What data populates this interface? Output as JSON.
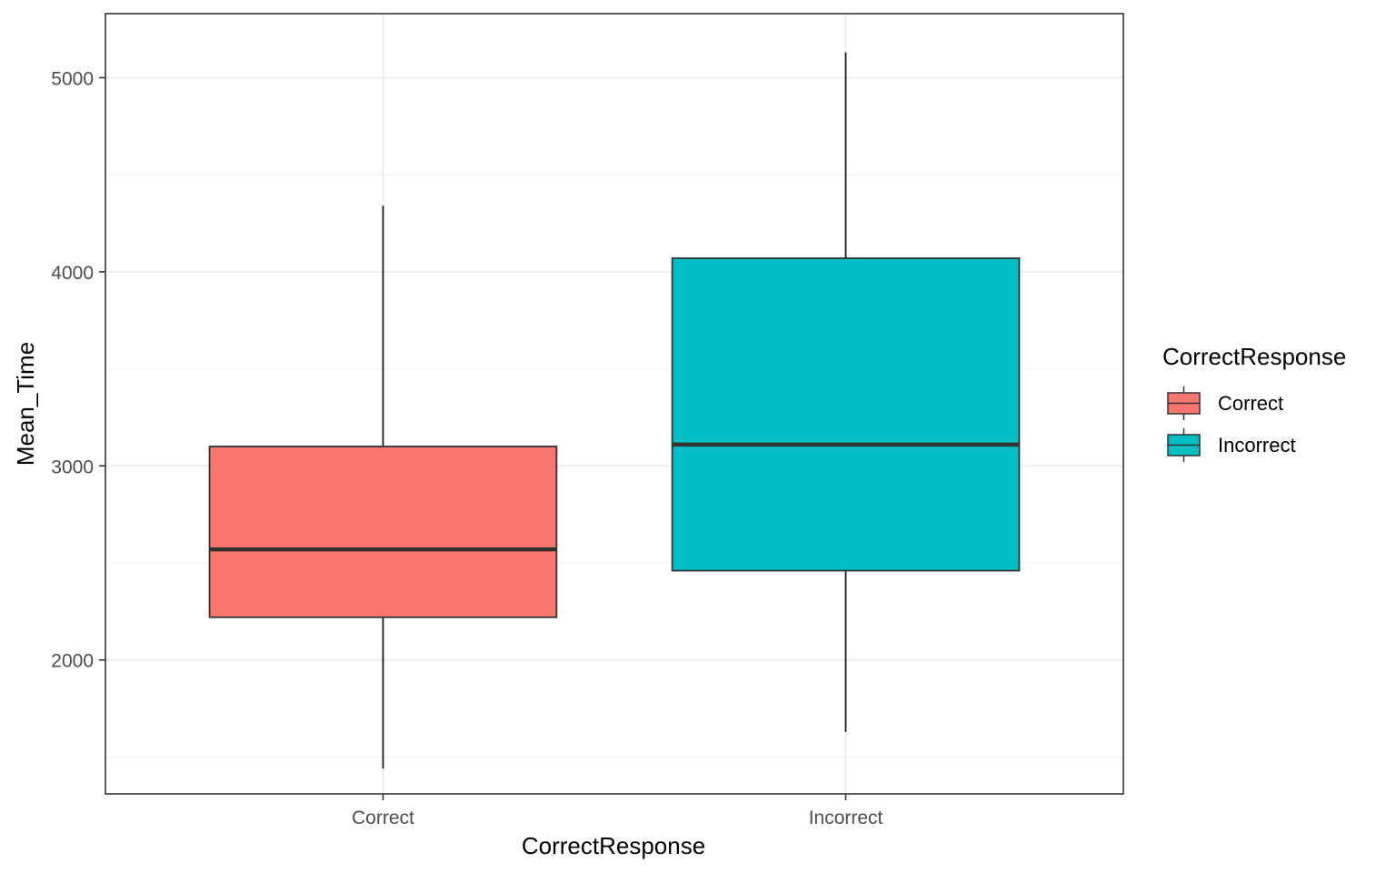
{
  "chart_data": {
    "type": "boxplot",
    "xlabel": "CorrectResponse",
    "ylabel": "Mean_Time",
    "categories": [
      "Correct",
      "Incorrect"
    ],
    "ylim": [
      1310,
      5330
    ],
    "yticks": [
      2000,
      3000,
      4000,
      5000
    ],
    "grid": true,
    "boxes": [
      {
        "category": "Correct",
        "min": 1440,
        "q1": 2220,
        "median": 2570,
        "q3": 3100,
        "max": 4340,
        "color": "#F8766D"
      },
      {
        "category": "Incorrect",
        "min": 1630,
        "q1": 2460,
        "median": 3110,
        "q3": 4070,
        "max": 5130,
        "color": "#00BFC4"
      }
    ],
    "legend": {
      "title": "CorrectResponse",
      "position": "right",
      "items": [
        {
          "label": "Correct",
          "color": "#F8766D"
        },
        {
          "label": "Incorrect",
          "color": "#00BFC4"
        }
      ]
    }
  }
}
